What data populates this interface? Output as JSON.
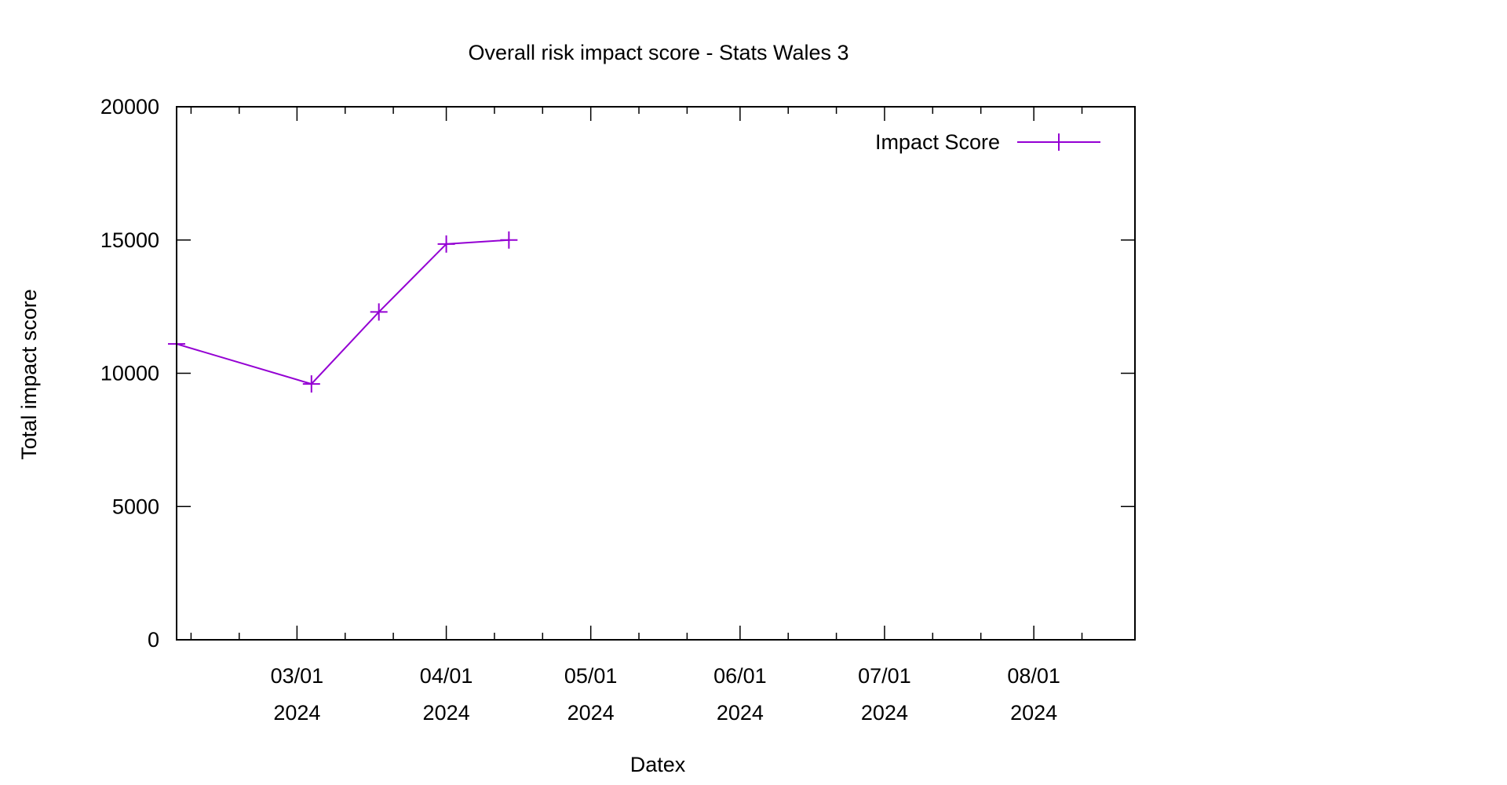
{
  "chart_data": {
    "type": "line",
    "title": "Overall risk impact score - Stats Wales 3",
    "xlabel": "Datex",
    "ylabel": "Total impact score",
    "xlim": [
      "2024-02-05",
      "2024-08-22"
    ],
    "ylim": [
      0,
      20000
    ],
    "y_ticks": [
      {
        "value": 0,
        "label": "0"
      },
      {
        "value": 5000,
        "label": "5000"
      },
      {
        "value": 10000,
        "label": "10000"
      },
      {
        "value": 15000,
        "label": "15000"
      },
      {
        "value": 20000,
        "label": "20000"
      }
    ],
    "x_ticks": [
      {
        "date": "2024-03-01",
        "label1": "03/01",
        "label2": "2024"
      },
      {
        "date": "2024-04-01",
        "label1": "04/01",
        "label2": "2024"
      },
      {
        "date": "2024-05-01",
        "label1": "05/01",
        "label2": "2024"
      },
      {
        "date": "2024-06-01",
        "label1": "06/01",
        "label2": "2024"
      },
      {
        "date": "2024-07-01",
        "label1": "07/01",
        "label2": "2024"
      },
      {
        "date": "2024-08-01",
        "label1": "08/01",
        "label2": "2024"
      }
    ],
    "x_minor_tick_dates": [
      "2024-02-08",
      "2024-02-18",
      "2024-03-11",
      "2024-03-21",
      "2024-04-11",
      "2024-04-21",
      "2024-05-11",
      "2024-05-21",
      "2024-06-11",
      "2024-06-21",
      "2024-07-11",
      "2024-07-21",
      "2024-08-11"
    ],
    "grid": false,
    "legend": "top-right",
    "series": [
      {
        "name": "Impact Score",
        "color": "#9400d3",
        "marker": "plus",
        "points": [
          {
            "x": "2024-02-05",
            "y": 11100
          },
          {
            "x": "2024-03-04",
            "y": 9600
          },
          {
            "x": "2024-03-18",
            "y": 12300
          },
          {
            "x": "2024-04-01",
            "y": 14850
          },
          {
            "x": "2024-04-14",
            "y": 15000
          }
        ]
      }
    ]
  }
}
